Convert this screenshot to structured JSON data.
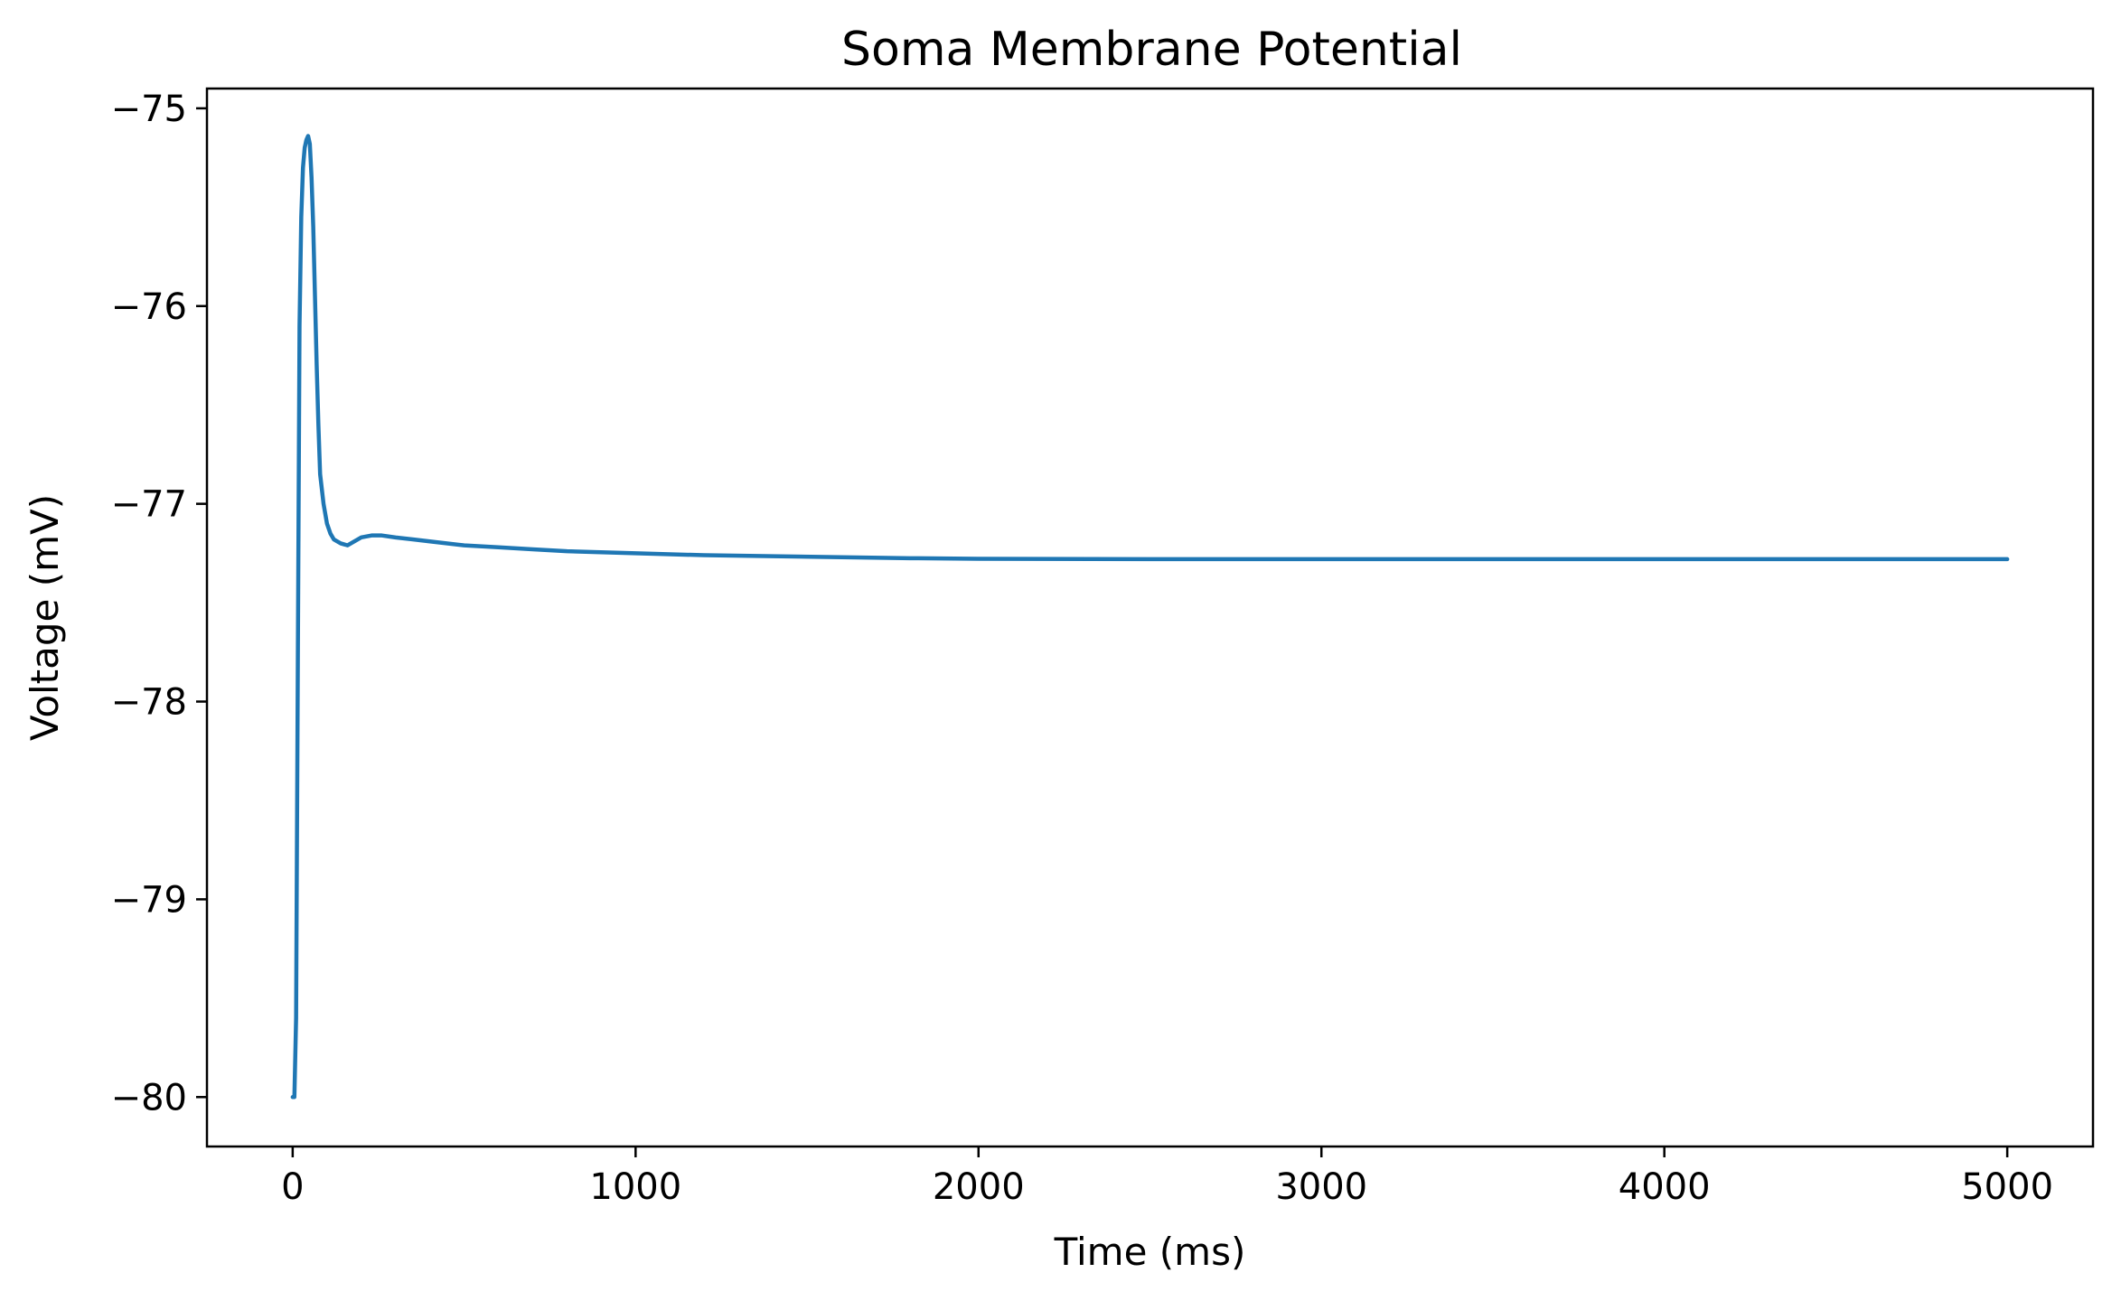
{
  "chart_data": {
    "type": "line",
    "title": "Soma Membrane Potential",
    "xlabel": "Time (ms)",
    "ylabel": "Voltage (mV)",
    "xlim": [
      -250,
      5250
    ],
    "ylim": [
      -80.25,
      -74.9
    ],
    "x_ticks": [
      0,
      1000,
      2000,
      3000,
      4000,
      5000
    ],
    "x_tick_labels": [
      "0",
      "1000",
      "2000",
      "3000",
      "4000",
      "5000"
    ],
    "y_ticks": [
      -80,
      -79,
      -78,
      -77,
      -76,
      -75
    ],
    "y_tick_labels": [
      "−80",
      "−79",
      "−78",
      "−77",
      "−76",
      "−75"
    ],
    "grid": false,
    "legend": "none",
    "series": [
      {
        "color": "#1f77b4",
        "x": [
          0,
          5,
          10,
          15,
          20,
          25,
          30,
          35,
          40,
          45,
          50,
          55,
          60,
          65,
          70,
          75,
          80,
          90,
          100,
          110,
          120,
          140,
          160,
          180,
          200,
          230,
          260,
          300,
          350,
          400,
          500,
          600,
          700,
          800,
          1000,
          1200,
          1400,
          1600,
          1800,
          2000,
          2500,
          3000,
          3500,
          4000,
          4500,
          5000
        ],
        "y": [
          -80.0,
          -80.0,
          -79.6,
          -77.8,
          -76.1,
          -75.55,
          -75.3,
          -75.2,
          -75.16,
          -75.14,
          -75.18,
          -75.35,
          -75.6,
          -75.95,
          -76.3,
          -76.6,
          -76.85,
          -77.0,
          -77.1,
          -77.15,
          -77.18,
          -77.2,
          -77.21,
          -77.19,
          -77.17,
          -77.16,
          -77.16,
          -77.17,
          -77.18,
          -77.19,
          -77.21,
          -77.22,
          -77.23,
          -77.24,
          -77.25,
          -77.26,
          -77.265,
          -77.27,
          -77.275,
          -77.278,
          -77.28,
          -77.28,
          -77.28,
          -77.28,
          -77.28,
          -77.28
        ]
      }
    ]
  }
}
